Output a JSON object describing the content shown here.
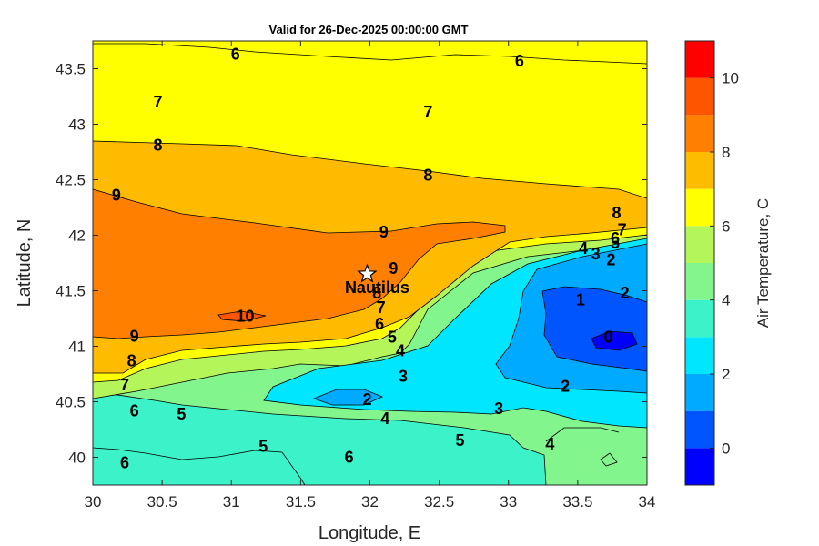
{
  "chart_data": {
    "type": "contour",
    "title": "Valid for 26-Dec-2025 00:00:00 GMT",
    "xlabel": "Longitude, E",
    "ylabel": "Latitude, N",
    "xlim": [
      30,
      34
    ],
    "ylim": [
      39.75,
      43.75
    ],
    "x_ticks": [
      "30",
      "30.5",
      "31",
      "31.5",
      "32",
      "32.5",
      "33",
      "33.5",
      "34"
    ],
    "y_ticks": [
      "40",
      "40.5",
      "41",
      "41.5",
      "42",
      "42.5",
      "43",
      "43.5"
    ],
    "colorbar": {
      "label": "Air Temperature, C",
      "range": [
        -1,
        11
      ],
      "ticks": [
        "0",
        "2",
        "4",
        "6",
        "8",
        "10"
      ],
      "levels": [
        -1,
        0,
        1,
        2,
        3,
        4,
        5,
        6,
        7,
        8,
        9,
        10,
        11
      ],
      "colors": [
        "#0000ff",
        "#0055ff",
        "#00aaff",
        "#00e6ff",
        "#3cf2c8",
        "#82f58c",
        "#b4f55a",
        "#ffff00",
        "#ffbb00",
        "#ff8000",
        "#ff5500",
        "#ff0000"
      ]
    },
    "station": {
      "name": "Nautilus",
      "lon": 31.98,
      "lat": 41.65
    },
    "contour_labels": [
      {
        "text": "6",
        "lon": 31.03,
        "lat": 43.63
      },
      {
        "text": "6",
        "lon": 33.08,
        "lat": 43.57
      },
      {
        "text": "7",
        "lon": 30.47,
        "lat": 43.2
      },
      {
        "text": "7",
        "lon": 32.42,
        "lat": 43.11
      },
      {
        "text": "8",
        "lon": 30.47,
        "lat": 42.81
      },
      {
        "text": "8",
        "lon": 32.42,
        "lat": 42.54
      },
      {
        "text": "9",
        "lon": 30.17,
        "lat": 42.36
      },
      {
        "text": "9",
        "lon": 32.1,
        "lat": 42.03
      },
      {
        "text": "9",
        "lon": 32.17,
        "lat": 41.7
      },
      {
        "text": "8",
        "lon": 33.78,
        "lat": 42.2
      },
      {
        "text": "7",
        "lon": 33.82,
        "lat": 42.05
      },
      {
        "text": "6",
        "lon": 33.77,
        "lat": 41.97
      },
      {
        "text": "5",
        "lon": 33.77,
        "lat": 41.93
      },
      {
        "text": "4",
        "lon": 33.54,
        "lat": 41.88
      },
      {
        "text": "3",
        "lon": 33.63,
        "lat": 41.83
      },
      {
        "text": "2",
        "lon": 33.74,
        "lat": 41.78
      },
      {
        "text": "2",
        "lon": 33.84,
        "lat": 41.48
      },
      {
        "text": "1",
        "lon": 33.52,
        "lat": 41.42
      },
      {
        "text": "0",
        "lon": 33.72,
        "lat": 41.08
      },
      {
        "text": "10",
        "lon": 31.1,
        "lat": 41.27
      },
      {
        "text": "8",
        "lon": 32.05,
        "lat": 41.48
      },
      {
        "text": "7",
        "lon": 32.08,
        "lat": 41.35
      },
      {
        "text": "6",
        "lon": 32.07,
        "lat": 41.2
      },
      {
        "text": "5",
        "lon": 32.16,
        "lat": 41.08
      },
      {
        "text": "4",
        "lon": 32.22,
        "lat": 40.96
      },
      {
        "text": "9",
        "lon": 30.3,
        "lat": 41.09
      },
      {
        "text": "8",
        "lon": 30.28,
        "lat": 40.87
      },
      {
        "text": "7",
        "lon": 30.23,
        "lat": 40.65
      },
      {
        "text": "6",
        "lon": 30.3,
        "lat": 40.42
      },
      {
        "text": "5",
        "lon": 30.64,
        "lat": 40.39
      },
      {
        "text": "3",
        "lon": 32.24,
        "lat": 40.73
      },
      {
        "text": "2",
        "lon": 31.98,
        "lat": 40.52
      },
      {
        "text": "2",
        "lon": 33.41,
        "lat": 40.64
      },
      {
        "text": "3",
        "lon": 32.93,
        "lat": 40.44
      },
      {
        "text": "4",
        "lon": 32.11,
        "lat": 40.35
      },
      {
        "text": "5",
        "lon": 32.65,
        "lat": 40.15
      },
      {
        "text": "5",
        "lon": 31.23,
        "lat": 40.1
      },
      {
        "text": "6",
        "lon": 31.85,
        "lat": 40.0
      },
      {
        "text": "6",
        "lon": 30.23,
        "lat": 39.95
      },
      {
        "text": "4",
        "lon": 33.3,
        "lat": 40.12
      }
    ]
  }
}
